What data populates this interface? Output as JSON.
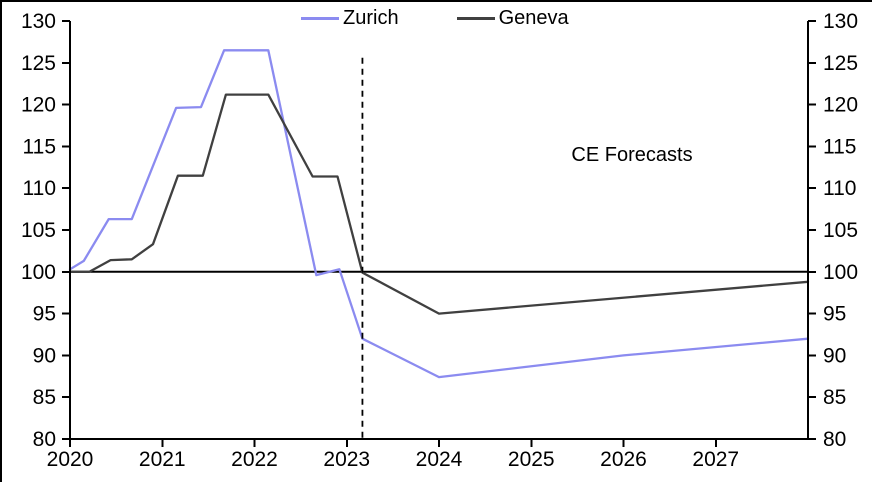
{
  "chart_data": {
    "type": "line",
    "title": "",
    "annotation": "CE Forecasts",
    "baseline": 100,
    "xlim": [
      2020,
      2028
    ],
    "ylim": [
      80,
      130
    ],
    "x_ticks": [
      "2020",
      "2021",
      "2022",
      "2023",
      "2024",
      "2025",
      "2026",
      "2027"
    ],
    "x_tick_years": [
      2020,
      2021,
      2022,
      2023,
      2024,
      2025,
      2026,
      2027
    ],
    "y_ticks": [
      "80",
      "85",
      "90",
      "95",
      "100",
      "105",
      "110",
      "115",
      "120",
      "125",
      "130"
    ],
    "y_tick_values": [
      80,
      85,
      90,
      95,
      100,
      105,
      110,
      115,
      120,
      125,
      130
    ],
    "grid": false,
    "legend_position": "top-center",
    "forecast_divider_x": 2023.17,
    "forecast_divider_top": 125.6,
    "axis_color": "#000000",
    "series": [
      {
        "name": "Zurich",
        "color": "#8B8BF0",
        "points": [
          [
            2020.0,
            100.3
          ],
          [
            2020.15,
            101.3
          ],
          [
            2020.42,
            106.3
          ],
          [
            2020.67,
            106.3
          ],
          [
            2021.15,
            119.6
          ],
          [
            2021.42,
            119.7
          ],
          [
            2021.67,
            126.5
          ],
          [
            2022.15,
            126.5
          ],
          [
            2022.67,
            99.6
          ],
          [
            2022.92,
            100.3
          ],
          [
            2023.17,
            92.0
          ],
          [
            2024.0,
            87.4
          ],
          [
            2026.0,
            90.0
          ],
          [
            2028.0,
            92.0
          ]
        ]
      },
      {
        "name": "Geneva",
        "color": "#404040",
        "points": [
          [
            2020.0,
            100.0
          ],
          [
            2020.21,
            100.0
          ],
          [
            2020.44,
            101.4
          ],
          [
            2020.67,
            101.5
          ],
          [
            2020.9,
            103.3
          ],
          [
            2021.17,
            111.5
          ],
          [
            2021.44,
            111.5
          ],
          [
            2021.69,
            121.2
          ],
          [
            2022.15,
            121.2
          ],
          [
            2022.63,
            111.4
          ],
          [
            2022.9,
            111.4
          ],
          [
            2023.17,
            99.9
          ],
          [
            2024.0,
            95.0
          ],
          [
            2028.0,
            98.8
          ]
        ]
      }
    ]
  }
}
